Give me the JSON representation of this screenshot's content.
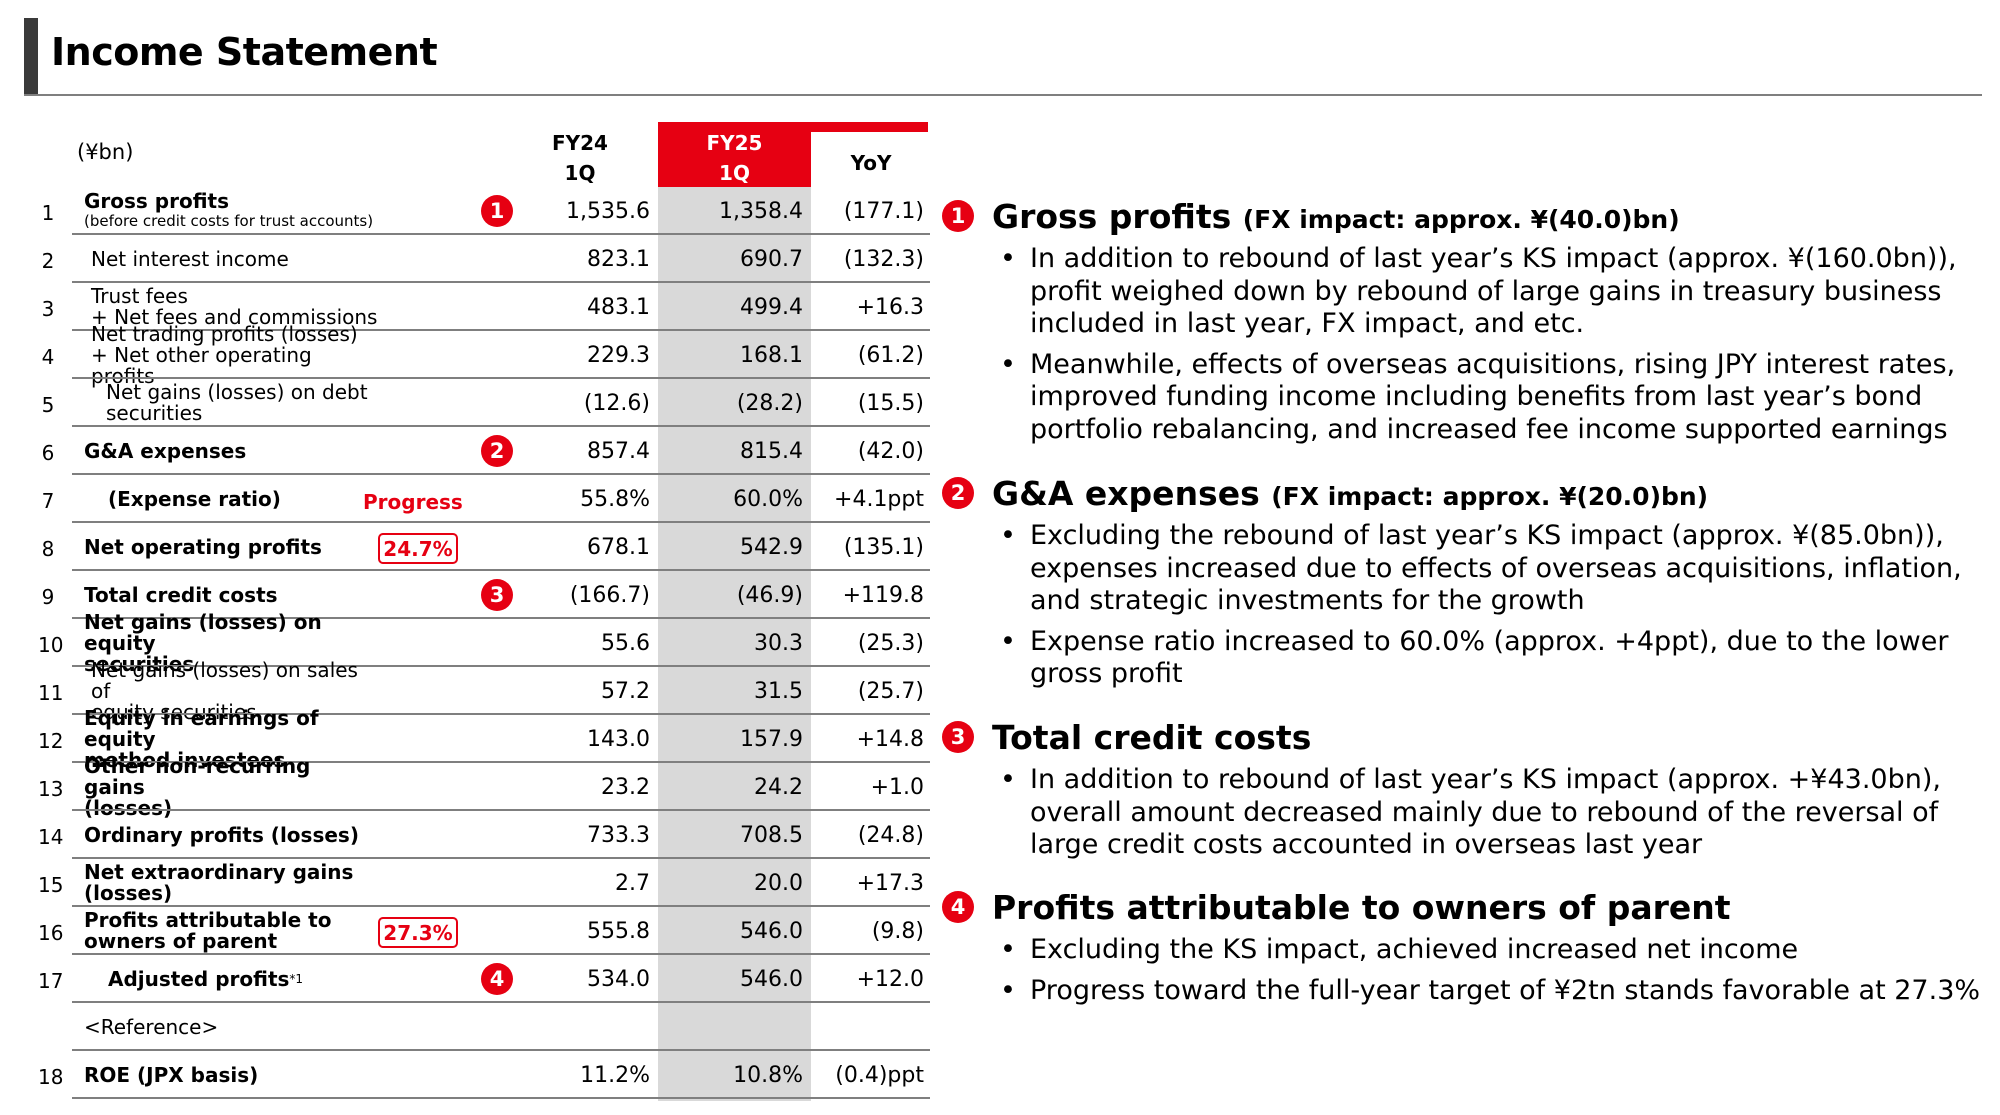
{
  "title": "Income Statement",
  "table": {
    "unit": "(¥bn)",
    "col_fy24": [
      "FY24",
      "1Q"
    ],
    "col_fy25": [
      "FY25",
      "1Q"
    ],
    "col_yoy": "YoY",
    "progress_label": "Progress",
    "progress_net_operating": "24.7%",
    "progress_profits_parent": "27.3%",
    "reference_label": "<Reference>",
    "rows": [
      {
        "num": "1",
        "label": "Gross profits",
        "sub": "(before credit costs for trust accounts)",
        "fy24": "1,535.6",
        "fy25": "1,358.4",
        "yoy": "(177.1)",
        "marker": "1"
      },
      {
        "num": "2",
        "label": "Net interest income",
        "fy24": "823.1",
        "fy25": "690.7",
        "yoy": "(132.3)"
      },
      {
        "num": "3",
        "label": "Trust fees",
        "label2": "+ Net fees and commissions",
        "fy24": "483.1",
        "fy25": "499.4",
        "yoy": "+16.3"
      },
      {
        "num": "4",
        "label": "Net trading profits (losses)",
        "label2": "+ Net other operating profits",
        "fy24": "229.3",
        "fy25": "168.1",
        "yoy": "(61.2)"
      },
      {
        "num": "5",
        "label": "Net gains (losses) on debt",
        "label2": "securities",
        "fy24": "(12.6)",
        "fy25": "(28.2)",
        "yoy": "(15.5)"
      },
      {
        "num": "6",
        "label": "G&A expenses",
        "fy24": "857.4",
        "fy25": "815.4",
        "yoy": "(42.0)",
        "marker": "2"
      },
      {
        "num": "7",
        "label": "(Expense ratio)",
        "fy24": "55.8%",
        "fy25": "60.0%",
        "yoy": "+4.1ppt"
      },
      {
        "num": "8",
        "label": "Net operating profits",
        "fy24": "678.1",
        "fy25": "542.9",
        "yoy": "(135.1)"
      },
      {
        "num": "9",
        "label": "Total credit costs",
        "fy24": "(166.7)",
        "fy25": "(46.9)",
        "yoy": "+119.8",
        "marker": "3"
      },
      {
        "num": "10",
        "label": "Net gains (losses) on equity",
        "label2": "securities",
        "fy24": "55.6",
        "fy25": "30.3",
        "yoy": "(25.3)"
      },
      {
        "num": "11",
        "label": "Net gains (losses) on sales of",
        "label2": "equity securities",
        "fy24": "57.2",
        "fy25": "31.5",
        "yoy": "(25.7)"
      },
      {
        "num": "12",
        "label": "Equity in earnings of equity",
        "label2": "method investees",
        "fy24": "143.0",
        "fy25": "157.9",
        "yoy": "+14.8"
      },
      {
        "num": "13",
        "label": "Other non-recurring gains",
        "label2": "(losses)",
        "fy24": "23.2",
        "fy25": "24.2",
        "yoy": "+1.0"
      },
      {
        "num": "14",
        "label": "Ordinary profits (losses)",
        "fy24": "733.3",
        "fy25": "708.5",
        "yoy": "(24.8)"
      },
      {
        "num": "15",
        "label": "Net extraordinary gains",
        "label2": "(losses)",
        "fy24": "2.7",
        "fy25": "20.0",
        "yoy": "+17.3"
      },
      {
        "num": "16",
        "label": "Profits attributable to",
        "label2": "owners of parent",
        "fy24": "555.8",
        "fy25": "546.0",
        "yoy": "(9.8)"
      },
      {
        "num": "17",
        "label": "Adjusted profits",
        "footnote": "*1",
        "fy24": "534.0",
        "fy25": "546.0",
        "yoy": "+12.0",
        "marker": "4"
      },
      {
        "num": "18",
        "label": "ROE (JPX basis)",
        "fy24": "11.2%",
        "fy25": "10.8%",
        "yoy": "(0.4)ppt"
      }
    ]
  },
  "sections": [
    {
      "marker": "1",
      "heading": "Gross profits",
      "fx": "(FX impact: approx. ¥(40.0)bn)",
      "bullets": [
        "In addition to rebound of last year’s KS impact (approx. ¥(160.0bn)), profit weighed down by rebound of large gains in treasury business included in last year, FX impact, and etc.",
        "Meanwhile, effects of overseas acquisitions, rising JPY interest rates, improved funding income including benefits from last year’s bond portfolio rebalancing, and increased fee income supported earnings"
      ]
    },
    {
      "marker": "2",
      "heading": "G&A expenses",
      "fx": "(FX impact: approx. ¥(20.0)bn)",
      "bullets": [
        "Excluding the rebound of last year’s KS impact (approx. ¥(85.0bn)), expenses increased due to effects of overseas acquisitions, inflation, and strategic investments for the growth",
        "Expense ratio increased to 60.0% (approx. +4ppt), due to the lower gross profit"
      ]
    },
    {
      "marker": "3",
      "heading": "Total credit costs",
      "fx": "",
      "bullets": [
        "In addition to rebound of last year’s KS impact (approx. +¥43.0bn), overall amount decreased mainly due to rebound of the reversal of large credit costs accounted in overseas last year"
      ]
    },
    {
      "marker": "4",
      "heading": "Profits attributable to owners of parent",
      "fx": "",
      "bullets": [
        "Excluding the KS impact, achieved increased net income",
        "Progress toward the full-year target of ¥2tn stands favorable at 27.3%"
      ]
    }
  ]
}
